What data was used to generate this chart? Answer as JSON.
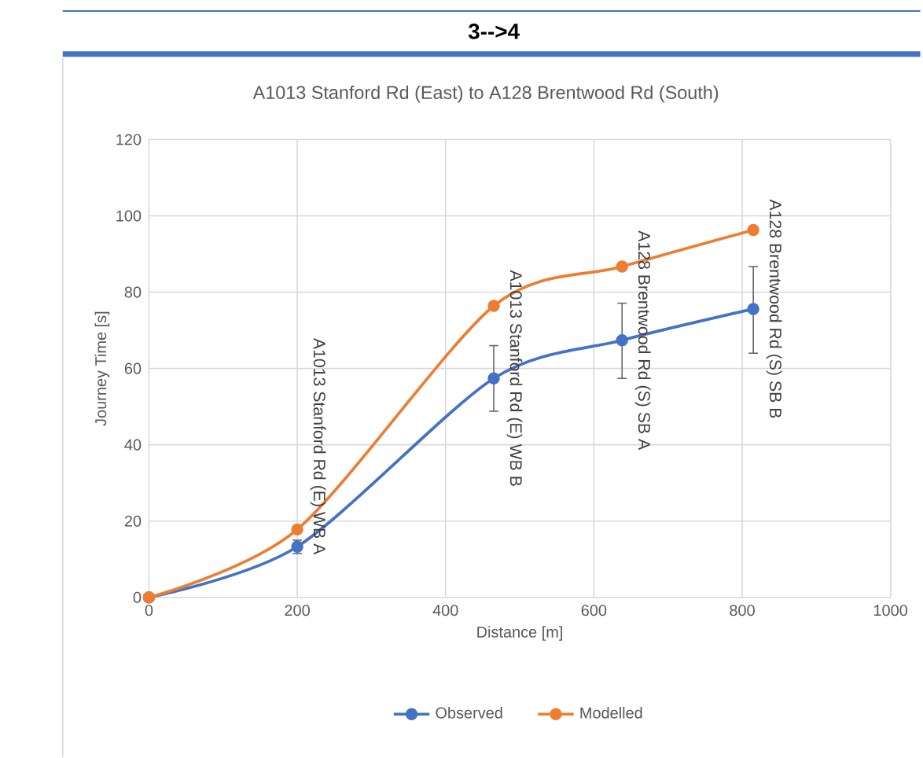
{
  "chart_data": {
    "type": "line",
    "title": "3-->4",
    "subtitle": "A1013 Stanford Rd (East) to A128 Brentwood Rd (South)",
    "xlabel": "Distance [m]",
    "ylabel": "Journey Time [s]",
    "x": [
      0,
      200,
      465,
      638,
      815
    ],
    "series": [
      {
        "name": "Observed",
        "color": "#4472c4",
        "values": [
          0,
          13.3,
          57.4,
          67.4,
          75.6
        ],
        "errors": [
          null,
          [
            11.5,
            15
          ],
          [
            48.8,
            66
          ],
          [
            57.4,
            77.1
          ],
          [
            64,
            86.7
          ]
        ]
      },
      {
        "name": "Modelled",
        "color": "#ed7d31",
        "values": [
          0,
          17.8,
          76.4,
          86.7,
          96.3
        ]
      }
    ],
    "annotations": [
      {
        "text": "A1013 Stanford Rd (E) WB A",
        "x": 200,
        "y": 13.3
      },
      {
        "text": "A1013 Stanford Rd (E) WB B",
        "x": 465,
        "y": 57.4
      },
      {
        "text": "A128 Brentwood Rd (S) SB A",
        "x": 638,
        "y": 67.4
      },
      {
        "text": "A128 Brentwood Rd (S) SB B",
        "x": 815,
        "y": 75.6
      }
    ],
    "xlim": [
      0,
      1000
    ],
    "xticks": [
      0,
      200,
      400,
      600,
      800,
      1000
    ],
    "ylim": [
      0,
      120
    ],
    "yticks": [
      0,
      20,
      40,
      60,
      80,
      100,
      120
    ],
    "grid": true,
    "legend": "bottom",
    "marker": "circle",
    "line_style": "solid"
  }
}
